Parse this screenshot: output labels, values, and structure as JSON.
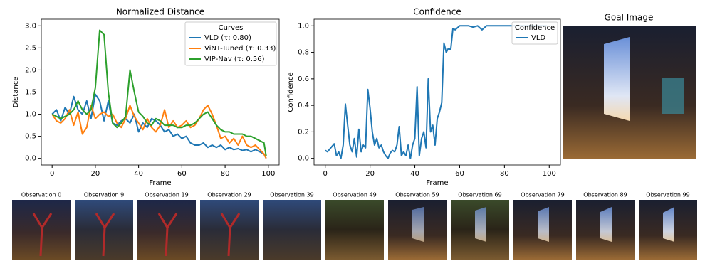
{
  "chart_data": [
    {
      "type": "line",
      "title": "Normalized Distance",
      "xlabel": "Frame",
      "ylabel": "Distance",
      "legend_title": "Curves",
      "legend_loc": "upper right",
      "x": [
        0,
        2,
        4,
        6,
        8,
        10,
        12,
        14,
        16,
        18,
        20,
        22,
        24,
        26,
        28,
        30,
        32,
        34,
        36,
        38,
        40,
        42,
        44,
        46,
        48,
        50,
        52,
        54,
        56,
        58,
        60,
        62,
        64,
        66,
        68,
        70,
        72,
        74,
        76,
        78,
        80,
        82,
        84,
        86,
        88,
        90,
        92,
        94,
        96,
        98,
        99
      ],
      "series": [
        {
          "name": "VLD (τ: 0.80)",
          "color": "#1f77b4",
          "values": [
            1.0,
            1.1,
            0.85,
            1.15,
            1.0,
            1.4,
            1.1,
            1.0,
            1.3,
            0.9,
            1.45,
            1.3,
            0.85,
            1.3,
            0.8,
            0.75,
            0.85,
            0.9,
            0.8,
            1.0,
            0.6,
            0.8,
            0.7,
            0.9,
            0.85,
            0.75,
            0.6,
            0.65,
            0.5,
            0.55,
            0.45,
            0.5,
            0.35,
            0.3,
            0.3,
            0.35,
            0.25,
            0.3,
            0.25,
            0.3,
            0.2,
            0.25,
            0.2,
            0.22,
            0.18,
            0.2,
            0.15,
            0.2,
            0.15,
            0.1,
            0.0
          ]
        },
        {
          "name": "ViNT-Tuned (τ: 0.33)",
          "color": "#ff7f0e",
          "values": [
            1.0,
            0.85,
            0.8,
            0.9,
            1.1,
            0.75,
            1.05,
            0.55,
            0.7,
            1.2,
            0.9,
            1.0,
            1.05,
            0.95,
            1.0,
            0.8,
            0.7,
            0.9,
            1.2,
            0.95,
            0.8,
            0.65,
            0.9,
            0.7,
            0.6,
            0.75,
            1.1,
            0.7,
            0.85,
            0.7,
            0.75,
            0.85,
            0.7,
            0.75,
            0.9,
            1.1,
            1.2,
            1.0,
            0.75,
            0.45,
            0.5,
            0.35,
            0.45,
            0.3,
            0.5,
            0.3,
            0.25,
            0.3,
            0.2,
            0.1,
            0.0
          ]
        },
        {
          "name": "VIP-Nav (τ: 0.56)",
          "color": "#2ca02c",
          "values": [
            1.0,
            0.95,
            0.9,
            0.95,
            1.0,
            1.1,
            1.3,
            1.1,
            1.0,
            1.1,
            1.6,
            2.9,
            2.8,
            1.5,
            0.8,
            0.7,
            0.8,
            0.95,
            2.0,
            1.5,
            1.05,
            0.95,
            0.8,
            0.75,
            0.9,
            0.85,
            0.75,
            0.75,
            0.75,
            0.7,
            0.7,
            0.75,
            0.75,
            0.8,
            0.9,
            1.0,
            1.05,
            0.9,
            0.75,
            0.65,
            0.6,
            0.6,
            0.55,
            0.55,
            0.55,
            0.5,
            0.5,
            0.45,
            0.4,
            0.35,
            0.05
          ]
        }
      ],
      "xlim": [
        -5,
        105
      ],
      "xticks": [
        0,
        20,
        40,
        60,
        80,
        100
      ],
      "ylim": [
        -0.15,
        3.15
      ],
      "yticks": [
        {
          "value": 0,
          "label": "0.0"
        },
        0.5,
        {
          "value": 1,
          "label": "1.0"
        },
        1.5,
        {
          "value": 2,
          "label": "2.0"
        },
        2.5,
        {
          "value": 3,
          "label": "3.0"
        }
      ]
    },
    {
      "type": "line",
      "title": "Confidence",
      "xlabel": "Frame",
      "ylabel": "Confidence",
      "legend_title": "Confidence",
      "legend_loc": "upper right",
      "x": [
        0,
        1,
        2,
        4,
        5,
        6,
        7,
        8,
        9,
        10,
        11,
        12,
        13,
        14,
        15,
        16,
        17,
        18,
        19,
        20,
        21,
        22,
        23,
        24,
        25,
        26,
        27,
        28,
        29,
        30,
        31,
        32,
        33,
        34,
        35,
        36,
        37,
        38,
        39,
        40,
        41,
        42,
        43,
        44,
        45,
        46,
        47,
        48,
        49,
        50,
        51,
        52,
        53,
        54,
        55,
        56,
        57,
        58,
        60,
        62,
        64,
        66,
        68,
        70,
        72,
        74,
        80,
        90,
        99
      ],
      "series": [
        {
          "name": "VLD",
          "color": "#1f77b4",
          "values": [
            0.06,
            0.05,
            0.07,
            0.11,
            0.02,
            0.05,
            0.0,
            0.1,
            0.41,
            0.25,
            0.1,
            0.05,
            0.15,
            0.01,
            0.22,
            0.05,
            0.1,
            0.08,
            0.52,
            0.38,
            0.2,
            0.1,
            0.15,
            0.08,
            0.1,
            0.05,
            0.02,
            0.0,
            0.04,
            0.06,
            0.05,
            0.1,
            0.24,
            0.02,
            0.05,
            0.02,
            0.1,
            0.0,
            0.1,
            0.15,
            0.54,
            0.02,
            0.15,
            0.2,
            0.08,
            0.6,
            0.2,
            0.25,
            0.1,
            0.3,
            0.35,
            0.42,
            0.87,
            0.8,
            0.83,
            0.82,
            0.98,
            0.97,
            1.0,
            1.0,
            1.0,
            0.99,
            1.0,
            0.97,
            1.0,
            1.0,
            1.0,
            1.0,
            1.0
          ]
        }
      ],
      "xlim": [
        -5,
        105
      ],
      "xticks": [
        0,
        20,
        40,
        60,
        80,
        100
      ],
      "ylim": [
        -0.05,
        1.05
      ],
      "yticks": [
        {
          "value": 0,
          "label": "0.0"
        },
        0.2,
        0.4,
        0.6,
        0.8,
        {
          "value": 1,
          "label": "1.0"
        }
      ]
    }
  ],
  "goal_image": {
    "title": "Goal Image"
  },
  "observations": [
    "Observation 0",
    "Observation 9",
    "Observation 19",
    "Observation 29",
    "Observation 39",
    "Observation 49",
    "Observation 59",
    "Observation 69",
    "Observation 79",
    "Observation 89",
    "Observation 99"
  ]
}
